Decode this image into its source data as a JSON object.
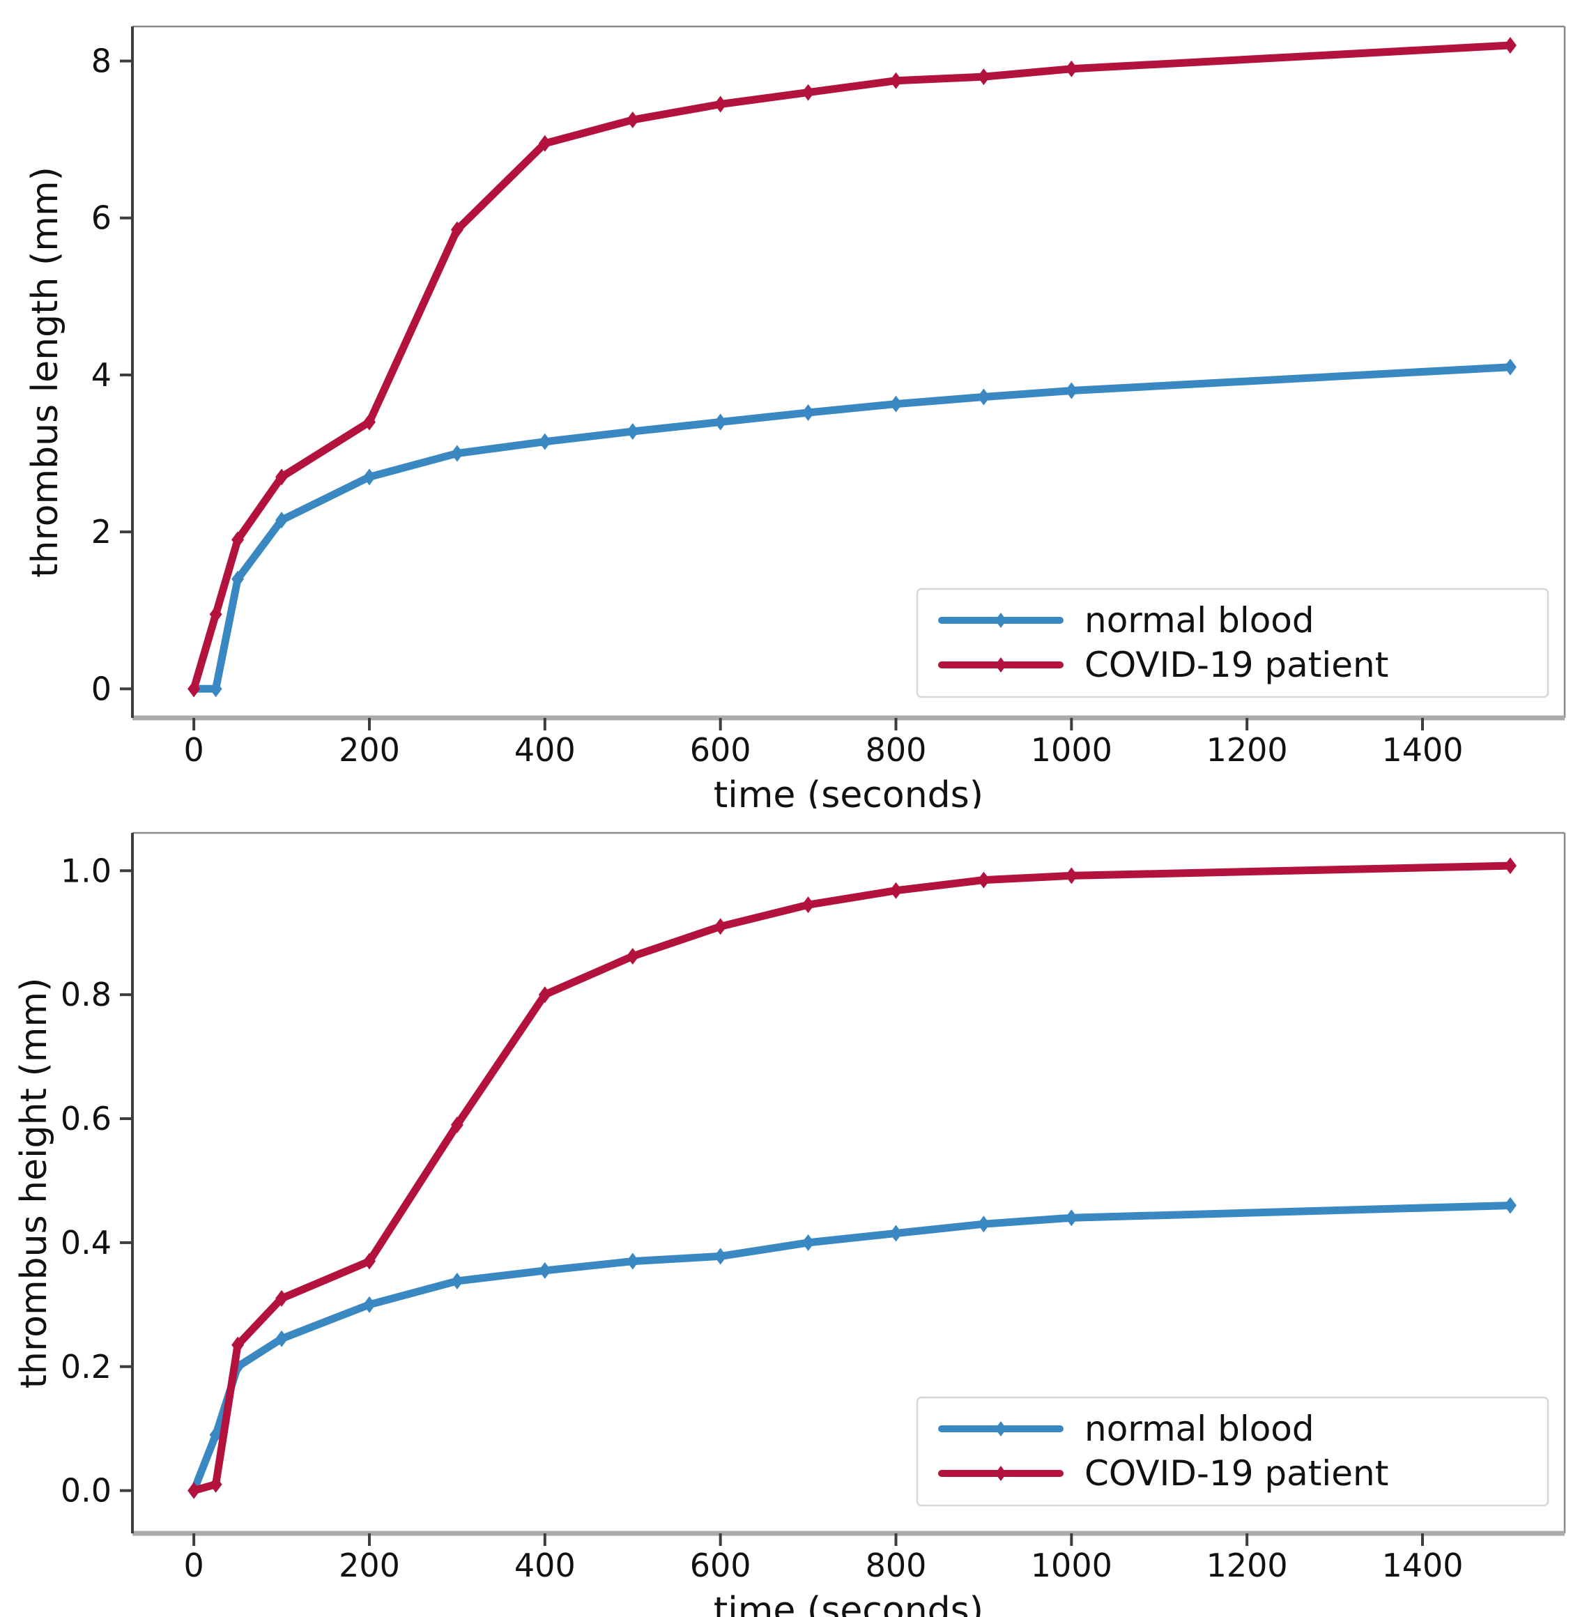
{
  "figure": {
    "description": "Two stacked line charts comparing thrombus growth over time for normal blood vs COVID-19 patient blood",
    "background": "#ffffff"
  },
  "colors": {
    "normal_blood": "#3a88c1",
    "covid_patient": "#b3123c",
    "tick": "#3d3d3d",
    "tick_label": "#111111",
    "spine_left": "#3d3d3d",
    "spine_thin": "#8a8a8a",
    "spine_bottom": "#ababab",
    "legend_border": "#d8d8d8",
    "legend_bg": "#ffffff"
  },
  "chart_data": [
    {
      "type": "line",
      "name": "thrombus-length",
      "title": "",
      "xlabel": "time (seconds)",
      "ylabel": "thrombus length (mm)",
      "x": [
        0,
        25,
        50,
        100,
        200,
        300,
        400,
        500,
        600,
        700,
        800,
        900,
        1000,
        1500
      ],
      "series": [
        {
          "name": "normal blood",
          "color_key": "normal_blood",
          "values": [
            0,
            0,
            1.4,
            2.15,
            2.7,
            3.0,
            3.15,
            3.28,
            3.4,
            3.52,
            3.63,
            3.72,
            3.8,
            4.1
          ]
        },
        {
          "name": "COVID-19 patient",
          "color_key": "covid_patient",
          "values": [
            0,
            0.95,
            1.9,
            2.7,
            3.4,
            5.85,
            6.95,
            7.25,
            7.45,
            7.6,
            7.75,
            7.8,
            7.9,
            8.2
          ]
        }
      ],
      "xticks": [
        0,
        200,
        400,
        600,
        800,
        1000,
        1200,
        1400
      ],
      "xtick_labels": [
        "0",
        "200",
        "400",
        "600",
        "800",
        "1000",
        "1200",
        "1400"
      ],
      "yticks": [
        0,
        2,
        4,
        6,
        8
      ],
      "ytick_labels": [
        "0",
        "2",
        "4",
        "6",
        "8"
      ],
      "xlim": [
        -70,
        1562
      ],
      "ylim": [
        -0.37,
        8.44
      ],
      "grid": false,
      "legend_position": "lower right"
    },
    {
      "type": "line",
      "name": "thrombus-height",
      "title": "",
      "xlabel": "time (seconds)",
      "ylabel": "thrombus height (mm)",
      "x": [
        0,
        25,
        50,
        100,
        200,
        300,
        400,
        500,
        600,
        700,
        800,
        900,
        1000,
        1500
      ],
      "series": [
        {
          "name": "normal blood",
          "color_key": "normal_blood",
          "values": [
            0,
            0.09,
            0.2,
            0.245,
            0.3,
            0.338,
            0.355,
            0.37,
            0.378,
            0.4,
            0.415,
            0.43,
            0.44,
            0.46
          ]
        },
        {
          "name": "COVID-19 patient",
          "color_key": "covid_patient",
          "values": [
            0,
            0.01,
            0.235,
            0.31,
            0.37,
            0.59,
            0.8,
            0.862,
            0.91,
            0.945,
            0.968,
            0.985,
            0.992,
            1.008
          ]
        }
      ],
      "xticks": [
        0,
        200,
        400,
        600,
        800,
        1000,
        1200,
        1400
      ],
      "xtick_labels": [
        "0",
        "200",
        "400",
        "600",
        "800",
        "1000",
        "1200",
        "1400"
      ],
      "yticks": [
        0,
        0.2,
        0.4,
        0.6,
        0.8,
        1.0
      ],
      "ytick_labels": [
        "0.0",
        "0.2",
        "0.4",
        "0.6",
        "0.8",
        "1.0"
      ],
      "xlim": [
        -70,
        1562
      ],
      "ylim": [
        -0.069,
        1.061
      ],
      "grid": false,
      "legend_position": "lower right"
    }
  ]
}
